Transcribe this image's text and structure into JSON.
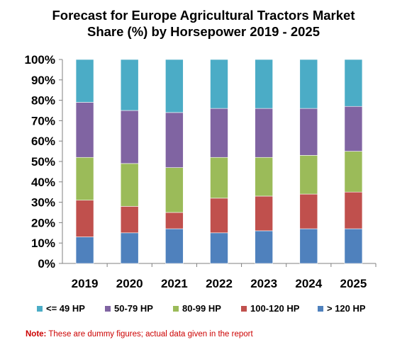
{
  "chart_data": {
    "type": "bar",
    "stacked": true,
    "title_lines": [
      "Forecast for Europe Agricultural Tractors Market",
      "Share (%) by Horsepower 2019 - 2025"
    ],
    "categories": [
      "2019",
      "2020",
      "2021",
      "2022",
      "2023",
      "2024",
      "2025"
    ],
    "ylim": [
      0,
      100
    ],
    "y_ticks": [
      "0%",
      "10%",
      "20%",
      "30%",
      "40%",
      "50%",
      "60%",
      "70%",
      "80%",
      "90%",
      "100%"
    ],
    "legend_position": "bottom",
    "series": [
      {
        "name": "> 120 HP",
        "color": "#4f81bd",
        "values": [
          13,
          15,
          17,
          15,
          16,
          17,
          17
        ]
      },
      {
        "name": "100-120 HP",
        "color": "#c0504d",
        "values": [
          18,
          13,
          8,
          17,
          17,
          17,
          18
        ]
      },
      {
        "name": "80-99 HP",
        "color": "#9bbb59",
        "values": [
          21,
          21,
          22,
          20,
          19,
          19,
          20
        ]
      },
      {
        "name": "50-79 HP",
        "color": "#8064a2",
        "values": [
          27,
          26,
          27,
          24,
          24,
          23,
          22
        ]
      },
      {
        "name": "<= 49 HP",
        "color": "#4bacc6",
        "values": [
          21,
          25,
          26,
          24,
          24,
          24,
          23
        ]
      }
    ],
    "legend_order": [
      "<= 49 HP",
      "50-79 HP",
      "80-99 HP",
      "100-120 HP",
      "> 120 HP"
    ]
  },
  "note": {
    "label": "Note:",
    "text": " These are dummy figures; actual data given in the report"
  }
}
